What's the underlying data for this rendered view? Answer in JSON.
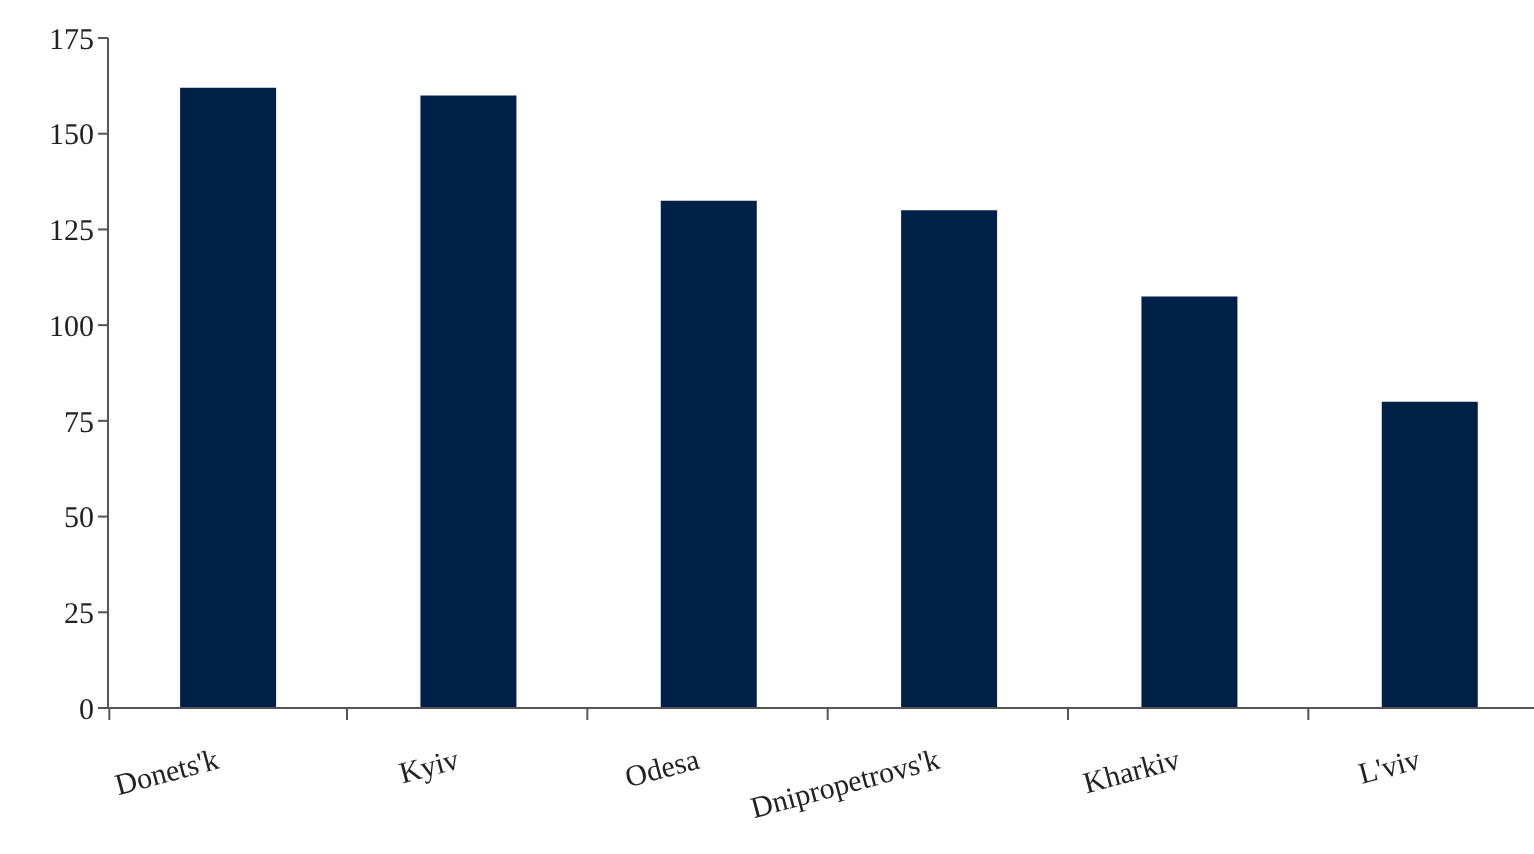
{
  "chart_data": {
    "type": "bar",
    "categories": [
      "Donets'k",
      "Kyiv",
      "Odesa",
      "Dnipropetrovs'k",
      "Kharkiv",
      "L'viv"
    ],
    "values": [
      162,
      160,
      132.5,
      130,
      107.5,
      80
    ],
    "color": "#002147",
    "ylim": [
      0,
      175
    ],
    "yticks": [
      0,
      25,
      50,
      75,
      100,
      125,
      150,
      175
    ],
    "grid": false,
    "legend": false
  }
}
